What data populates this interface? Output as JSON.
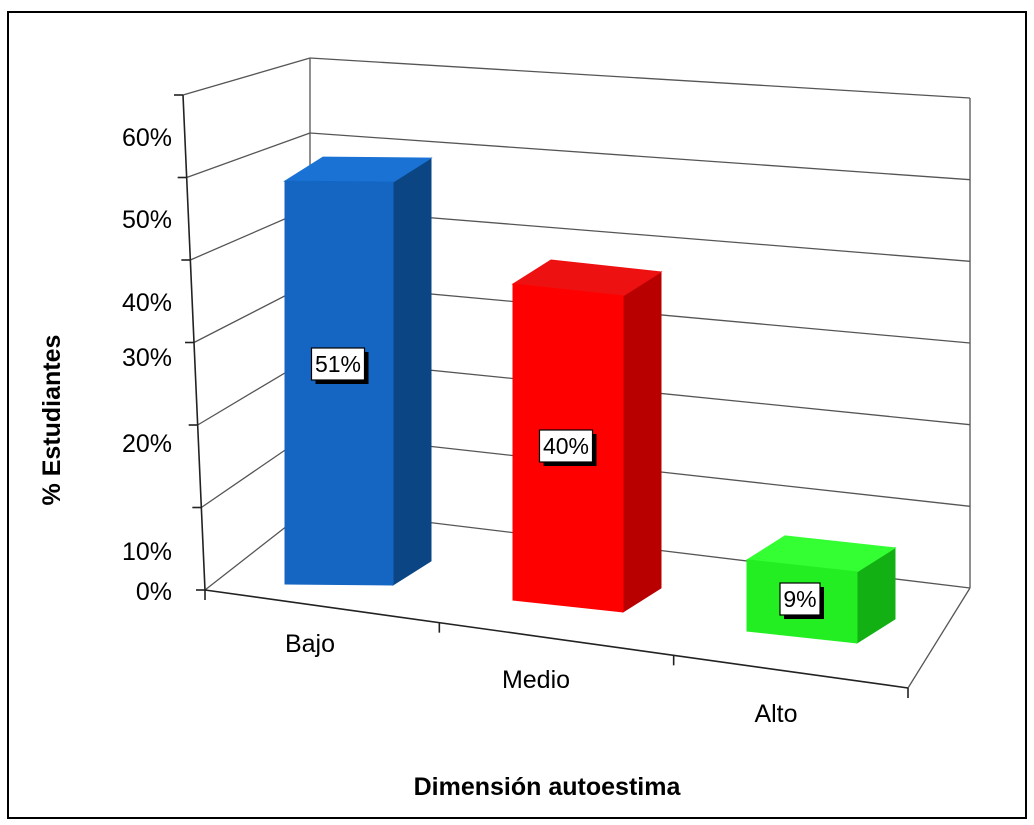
{
  "chart_data": {
    "type": "bar",
    "title": "",
    "xlabel": "Dimensión autoestima",
    "ylabel": "% Estudiantes",
    "categories": [
      "Bajo",
      "Medio",
      "Alto"
    ],
    "values": [
      51,
      40,
      9
    ],
    "data_labels": [
      "51%",
      "40%",
      "9%"
    ],
    "ylim": [
      0,
      60
    ],
    "y_ticks": [
      0,
      10,
      20,
      30,
      40,
      50,
      60
    ],
    "y_tick_labels": [
      "0%",
      "10%",
      "20%",
      "30%",
      "40%",
      "50%",
      "60%"
    ],
    "grid": true,
    "style": "3d-column",
    "bar_colors": [
      {
        "front": "#1566c2",
        "side": "#0c4584",
        "top": "#1a73d4"
      },
      {
        "front": "#ff0000",
        "side": "#b80000",
        "top": "#ee1111"
      },
      {
        "front": "#22ee22",
        "side": "#12b012",
        "top": "#33ff33"
      }
    ]
  }
}
